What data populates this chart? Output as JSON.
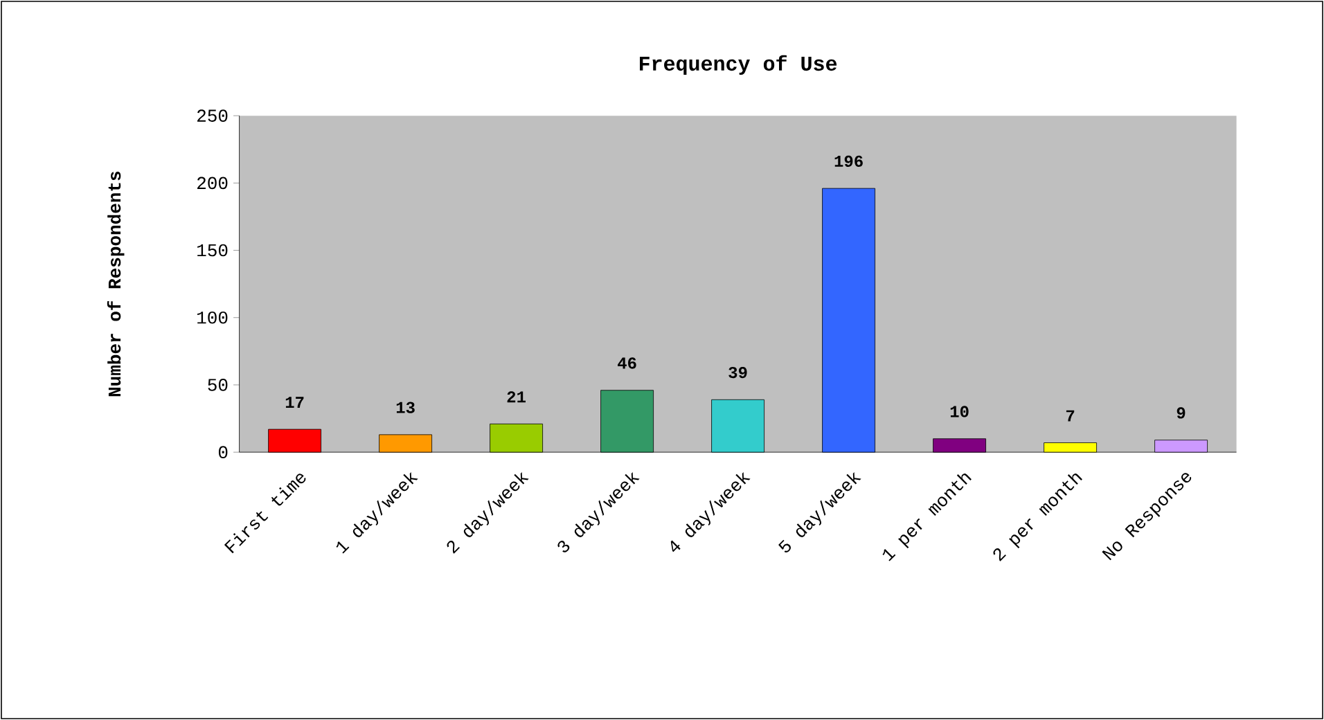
{
  "chart_data": {
    "type": "bar",
    "title": "Frequency of Use",
    "ylabel": "Number of Respondents",
    "categories": [
      "First time",
      "1 day/week",
      "2 day/week",
      "3 day/week",
      "4 day/week",
      "5 day/week",
      "1 per month",
      "2 per month",
      "No Response"
    ],
    "values": [
      17,
      13,
      21,
      46,
      39,
      196,
      10,
      7,
      9
    ],
    "colors": [
      "#ff0000",
      "#ff9900",
      "#99cc00",
      "#339966",
      "#33cccc",
      "#3366ff",
      "#800080",
      "#ffff00",
      "#cc99ff"
    ],
    "ylim": [
      0,
      250
    ],
    "yticks": [
      0,
      50,
      100,
      150,
      200,
      250
    ],
    "data_labels": true,
    "grid": false
  }
}
